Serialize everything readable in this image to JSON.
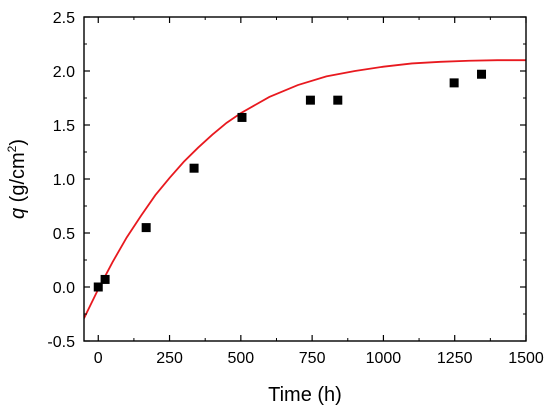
{
  "chart_data": {
    "type": "scatter",
    "title": "",
    "xlabel": "Time (h)",
    "ylabel_parts": {
      "var": "q",
      "rest": " (g/cm",
      "sup": "2",
      "close": ")"
    },
    "xlim": [
      -50,
      1500
    ],
    "ylim": [
      -0.5,
      2.5
    ],
    "xticks": [
      0,
      250,
      500,
      750,
      1000,
      1250,
      1500
    ],
    "yticks": [
      -0.5,
      0.0,
      0.5,
      1.0,
      1.5,
      2.0,
      2.5
    ],
    "ytick_labels": [
      "-0.5",
      "0.0",
      "0.5",
      "1.0",
      "1.5",
      "2.0",
      "2.5"
    ],
    "grid": false,
    "legend": "none",
    "series": [
      {
        "kind": "points",
        "marker": "square",
        "color": "#000000",
        "x": [
          0,
          24,
          168,
          336,
          504,
          744,
          840,
          1248,
          1344
        ],
        "y": [
          0.0,
          0.07,
          0.55,
          1.1,
          1.57,
          1.73,
          1.73,
          1.89,
          1.97
        ]
      },
      {
        "kind": "fit-line",
        "color": "#e8191f",
        "x": [
          -50,
          0,
          50,
          100,
          150,
          200,
          250,
          300,
          350,
          400,
          450,
          500,
          600,
          700,
          800,
          900,
          1000,
          1100,
          1200,
          1300,
          1400,
          1500
        ],
        "y": [
          -0.29,
          -0.02,
          0.23,
          0.46,
          0.66,
          0.85,
          1.01,
          1.16,
          1.29,
          1.41,
          1.52,
          1.61,
          1.76,
          1.87,
          1.95,
          2.0,
          2.04,
          2.07,
          2.085,
          2.095,
          2.1,
          2.1
        ]
      }
    ]
  }
}
